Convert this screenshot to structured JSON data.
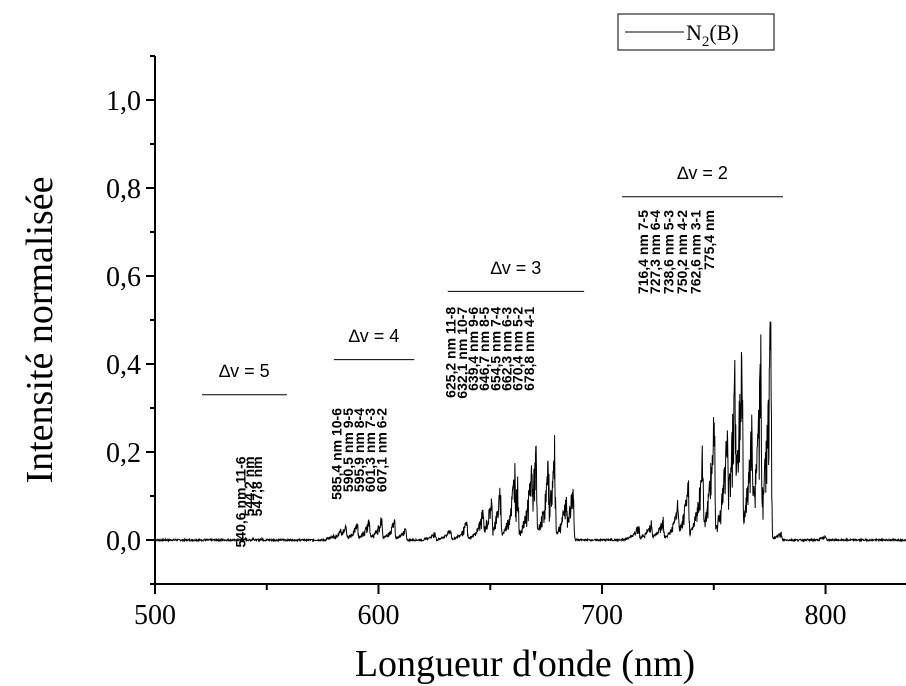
{
  "chart_data": {
    "type": "line",
    "xlabel": "Longueur d'onde (nm)",
    "ylabel": "Intensité normalisée",
    "xlim": [
      500,
      836
    ],
    "ylim": [
      -0.1,
      1.1
    ],
    "xticks": [
      500,
      600,
      700,
      800
    ],
    "xtick_labels": [
      "500",
      "600",
      "700",
      "800"
    ],
    "yticks": [
      0.0,
      0.2,
      0.4,
      0.6,
      0.8,
      1.0
    ],
    "ytick_labels": [
      "0,0",
      "0,2",
      "0,4",
      "0,6",
      "0,8",
      "1,0"
    ],
    "legend": {
      "placement": "top-right",
      "entries": [
        {
          "name_main": "N",
          "name_sub": "2",
          "name_tail": "(B)",
          "color": "#000000"
        }
      ]
    },
    "series": [
      {
        "name": "N2(B)",
        "color": "#000000",
        "baseline": 0.0,
        "peaks": [
          {
            "x": 540.6,
            "y": 0.004
          },
          {
            "x": 544.2,
            "y": 0.004
          },
          {
            "x": 547.8,
            "y": 0.004
          },
          {
            "x": 580.0,
            "y": 0.012
          },
          {
            "x": 583.0,
            "y": 0.025
          },
          {
            "x": 585.4,
            "y": 0.04
          },
          {
            "x": 590.5,
            "y": 0.045
          },
          {
            "x": 595.9,
            "y": 0.055
          },
          {
            "x": 601.3,
            "y": 0.06
          },
          {
            "x": 607.1,
            "y": 0.055
          },
          {
            "x": 612.0,
            "y": 0.03
          },
          {
            "x": 625.2,
            "y": 0.02
          },
          {
            "x": 632.1,
            "y": 0.03
          },
          {
            "x": 639.4,
            "y": 0.05
          },
          {
            "x": 646.7,
            "y": 0.08
          },
          {
            "x": 650.5,
            "y": 0.11
          },
          {
            "x": 654.5,
            "y": 0.13
          },
          {
            "x": 661.0,
            "y": 0.19
          },
          {
            "x": 662.3,
            "y": 0.15
          },
          {
            "x": 668.5,
            "y": 0.2
          },
          {
            "x": 670.4,
            "y": 0.235
          },
          {
            "x": 676.0,
            "y": 0.2
          },
          {
            "x": 678.8,
            "y": 0.24
          },
          {
            "x": 684.0,
            "y": 0.12
          },
          {
            "x": 687.0,
            "y": 0.15
          },
          {
            "x": 716.4,
            "y": 0.04
          },
          {
            "x": 722.0,
            "y": 0.05
          },
          {
            "x": 727.3,
            "y": 0.06
          },
          {
            "x": 734.0,
            "y": 0.1
          },
          {
            "x": 738.6,
            "y": 0.15
          },
          {
            "x": 745.0,
            "y": 0.23
          },
          {
            "x": 750.2,
            "y": 0.34
          },
          {
            "x": 756.0,
            "y": 0.3
          },
          {
            "x": 759.5,
            "y": 0.47
          },
          {
            "x": 762.6,
            "y": 0.53
          },
          {
            "x": 767.0,
            "y": 0.3
          },
          {
            "x": 771.0,
            "y": 0.47
          },
          {
            "x": 775.4,
            "y": 0.54
          },
          {
            "x": 780.0,
            "y": 0.02
          },
          {
            "x": 800.0,
            "y": 0.01
          }
        ]
      }
    ],
    "annotations": {
      "groups": [
        {
          "label": "∆v = 5",
          "x_start": 521,
          "x_end": 559,
          "y_line": 0.33,
          "label_y": 0.37,
          "lines": [
            "540,6 nm 11-6",
            "544,2 nm",
            "547,8 nm"
          ],
          "lines_x": [
            540.6,
            544.2,
            547.8
          ],
          "lines_top_y": 0.19
        },
        {
          "label": "∆v = 4",
          "x_start": 580,
          "x_end": 616,
          "y_line": 0.41,
          "label_y": 0.45,
          "lines": [
            "585,4 nm 10-6",
            "590,5 nm 9-5",
            "595,9 nm 8-4",
            "601,3 nm 7-3",
            "607,1 nm 6-2"
          ],
          "lines_x": [
            583.5,
            588.5,
            593.5,
            598.5,
            603.5
          ],
          "lines_top_y": 0.3
        },
        {
          "label": "∆v = 3",
          "x_start": 631,
          "x_end": 692,
          "y_line": 0.565,
          "label_y": 0.605,
          "lines": [
            "625,2 nm 11-8",
            "632,1 nm 10-7",
            "639,4 nm 9-6",
            "646,7 nm 8-5",
            "654,5 nm 7-4",
            "662,3 nm 6-3",
            "670,4 nm 5-2",
            "678,8 nm 4-1"
          ],
          "lines_x": [
            634.5,
            639.5,
            644.5,
            649.5,
            654.5,
            659.5,
            664.5,
            669.5
          ],
          "lines_top_y": 0.53
        },
        {
          "label": "∆v = 2",
          "x_start": 709,
          "x_end": 781,
          "y_line": 0.78,
          "label_y": 0.82,
          "lines": [
            "716,4 nm 7-5",
            "727,3 nm 6-4",
            "738,6 nm 5-3",
            "750,2 nm 4-2",
            "762,6 nm 3-1",
            "775,4 nm"
          ],
          "lines_x": [
            720.5,
            726.0,
            732.0,
            738.0,
            744.0,
            750.0
          ],
          "lines_top_y": 0.75
        }
      ]
    }
  }
}
